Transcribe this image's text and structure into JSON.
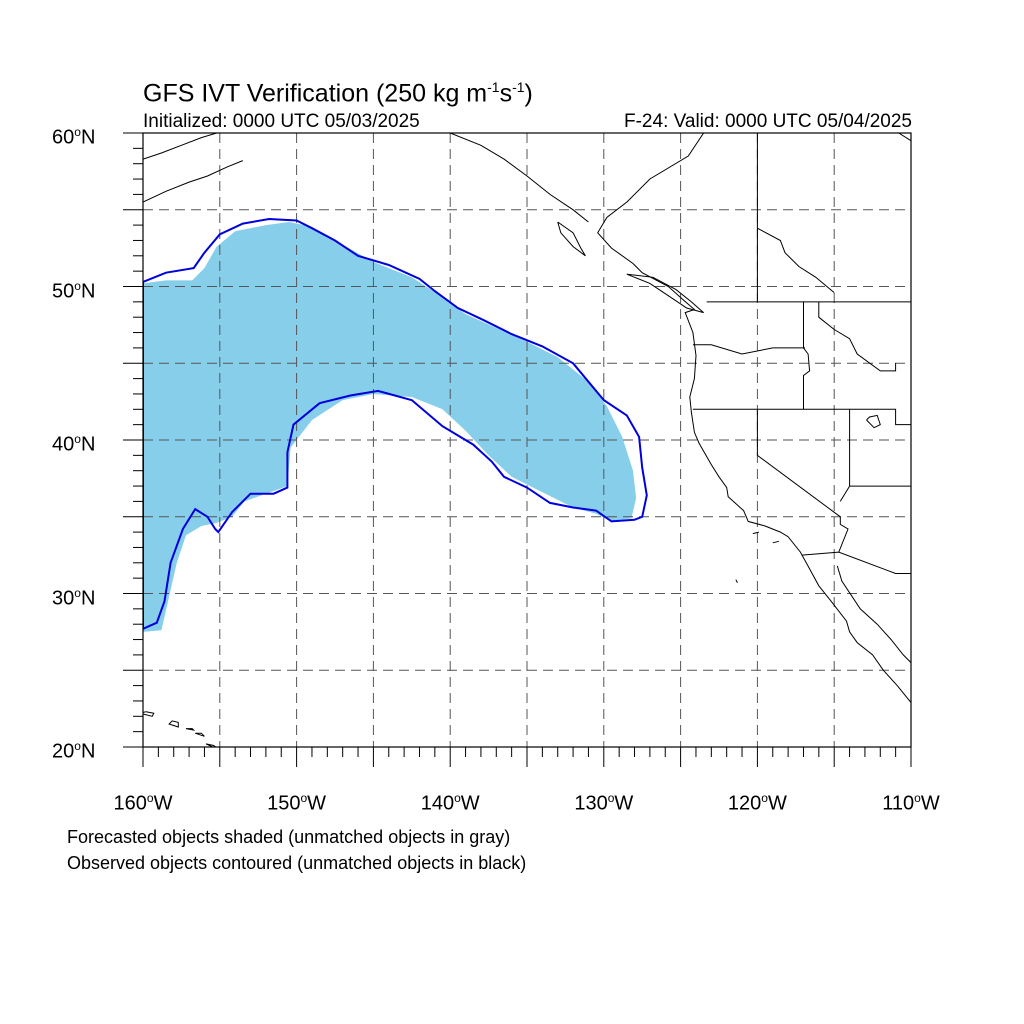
{
  "title": {
    "text": "GFS IVT Verification (250 kg m",
    "sup1": "-1",
    "mid": "s",
    "sup2": "-1",
    "close": ")"
  },
  "subtitle": {
    "initialized": "Initialized: 0000 UTC 05/03/2025",
    "valid": "F-24: Valid: 0000 UTC 05/04/2025"
  },
  "axes": {
    "lat_labels": [
      {
        "deg": "60",
        "hem": "N"
      },
      {
        "deg": "50",
        "hem": "N"
      },
      {
        "deg": "40",
        "hem": "N"
      },
      {
        "deg": "30",
        "hem": "N"
      },
      {
        "deg": "20",
        "hem": "N"
      }
    ],
    "lon_labels": [
      {
        "deg": "160",
        "hem": "W"
      },
      {
        "deg": "150",
        "hem": "W"
      },
      {
        "deg": "140",
        "hem": "W"
      },
      {
        "deg": "130",
        "hem": "W"
      },
      {
        "deg": "120",
        "hem": "W"
      },
      {
        "deg": "110",
        "hem": "W"
      }
    ],
    "degree_symbol": "o",
    "lat_range": [
      20,
      60
    ],
    "lon_range": [
      -160,
      -110
    ],
    "grid": "dashed, every 5 degrees"
  },
  "notes": {
    "forecast": "Forecasted objects shaded (unmatched objects in gray)",
    "observed": "Observed objects contoured (unmatched objects in black)"
  },
  "colors": {
    "forecast_fill": "#87ceeb",
    "observed_contour": "#0000dd",
    "coastline": "#000000",
    "grid": "#555555"
  },
  "forecast_object": [
    [
      -160,
      50.2
    ],
    [
      -158.5,
      50.4
    ],
    [
      -156.8,
      50.4
    ],
    [
      -156,
      51.2
    ],
    [
      -155.2,
      52.6
    ],
    [
      -154,
      53.6
    ],
    [
      -152,
      54.0
    ],
    [
      -150.5,
      54.2
    ],
    [
      -149.5,
      54.0
    ],
    [
      -147.5,
      53.0
    ],
    [
      -145,
      51.6
    ],
    [
      -142.5,
      50.6
    ],
    [
      -140.5,
      49.3
    ],
    [
      -139,
      48.2
    ],
    [
      -137,
      47.3
    ],
    [
      -135,
      46.4
    ],
    [
      -133,
      45.4
    ],
    [
      -131,
      43.8
    ],
    [
      -129.8,
      42.2
    ],
    [
      -128.8,
      40.2
    ],
    [
      -128.1,
      38.0
    ],
    [
      -127.9,
      36.2
    ],
    [
      -128.2,
      34.9
    ],
    [
      -129.5,
      34.7
    ],
    [
      -130.5,
      35.2
    ],
    [
      -132,
      35.6
    ],
    [
      -134,
      36.6
    ],
    [
      -136,
      37.6
    ],
    [
      -137.5,
      39.0
    ],
    [
      -139,
      40.6
    ],
    [
      -140.5,
      42.0
    ],
    [
      -142.5,
      42.8
    ],
    [
      -145,
      43.0
    ],
    [
      -147,
      42.6
    ],
    [
      -149,
      41.3
    ],
    [
      -150.4,
      39.5
    ],
    [
      -150.6,
      37.0
    ],
    [
      -152,
      36.5
    ],
    [
      -153.4,
      36.0
    ],
    [
      -154.2,
      35.0
    ],
    [
      -155.2,
      34.6
    ],
    [
      -156.2,
      34.4
    ],
    [
      -157.2,
      33.8
    ],
    [
      -157.8,
      32.0
    ],
    [
      -158.3,
      29.8
    ],
    [
      -158.8,
      27.6
    ],
    [
      -160,
      27.5
    ]
  ],
  "observed_object": [
    [
      -160,
      50.3
    ],
    [
      -158.5,
      50.9
    ],
    [
      -156.7,
      51.2
    ],
    [
      -156,
      52.2
    ],
    [
      -155,
      53.4
    ],
    [
      -153.5,
      54.1
    ],
    [
      -151.8,
      54.4
    ],
    [
      -150,
      54.3
    ],
    [
      -149,
      53.8
    ],
    [
      -147.5,
      53.0
    ],
    [
      -146,
      52.0
    ],
    [
      -144,
      51.4
    ],
    [
      -142,
      50.5
    ],
    [
      -141,
      49.7
    ],
    [
      -139.5,
      48.6
    ],
    [
      -137.8,
      47.8
    ],
    [
      -136,
      46.9
    ],
    [
      -134,
      46.1
    ],
    [
      -132,
      45.0
    ],
    [
      -131,
      43.8
    ],
    [
      -130,
      42.6
    ],
    [
      -128.5,
      41.6
    ],
    [
      -127.7,
      40.2
    ],
    [
      -127.5,
      38.2
    ],
    [
      -127.2,
      36.4
    ],
    [
      -127.5,
      35.0
    ],
    [
      -128.0,
      34.8
    ],
    [
      -129.5,
      34.7
    ],
    [
      -130.5,
      35.4
    ],
    [
      -132,
      35.6
    ],
    [
      -133.5,
      35.9
    ],
    [
      -135,
      36.9
    ],
    [
      -136.5,
      37.6
    ],
    [
      -137.3,
      38.6
    ],
    [
      -138.5,
      39.7
    ],
    [
      -140.5,
      40.9
    ],
    [
      -142.5,
      42.6
    ],
    [
      -144.7,
      43.2
    ],
    [
      -146.5,
      42.9
    ],
    [
      -148.5,
      42.4
    ],
    [
      -150.2,
      41.0
    ],
    [
      -150.6,
      39.2
    ],
    [
      -150.6,
      36.9
    ],
    [
      -151.5,
      36.5
    ],
    [
      -153.0,
      36.5
    ],
    [
      -154.2,
      35.3
    ],
    [
      -155.1,
      34.0
    ],
    [
      -155.3,
      34.2
    ],
    [
      -155.8,
      35.0
    ],
    [
      -156.6,
      35.5
    ],
    [
      -157.4,
      34.2
    ],
    [
      -158.2,
      32.0
    ],
    [
      -158.6,
      29.5
    ],
    [
      -159.1,
      28.1
    ],
    [
      -160,
      27.7
    ]
  ],
  "coastline": [
    [
      -123.5,
      60
    ],
    [
      -124.5,
      58.5
    ],
    [
      -127.0,
      57.0
    ],
    [
      -128.5,
      55.5
    ],
    [
      -129.8,
      54.5
    ],
    [
      -130.4,
      53.5
    ],
    [
      -129.5,
      52.5
    ],
    [
      -128.1,
      51.5
    ],
    [
      -127.5,
      50.9
    ],
    [
      -125.8,
      50.0
    ],
    [
      -124.8,
      49.1
    ],
    [
      -124.1,
      48.5
    ],
    [
      -124.7,
      48.3
    ],
    [
      -124.2,
      47.0
    ],
    [
      -124.0,
      45.5
    ],
    [
      -124.1,
      44.0
    ],
    [
      -124.4,
      42.8
    ],
    [
      -124.3,
      41.8
    ],
    [
      -124.1,
      40.5
    ],
    [
      -123.8,
      39.8
    ],
    [
      -123.0,
      38.4
    ],
    [
      -122.5,
      37.6
    ],
    [
      -122.0,
      36.9
    ],
    [
      -121.9,
      36.3
    ],
    [
      -120.9,
      35.4
    ],
    [
      -120.6,
      34.7
    ],
    [
      -119.5,
      34.4
    ],
    [
      -118.5,
      34.0
    ],
    [
      -118.0,
      33.7
    ],
    [
      -117.2,
      32.7
    ],
    [
      -116.6,
      31.6
    ],
    [
      -116.0,
      30.5
    ],
    [
      -115.2,
      29.5
    ],
    [
      -114.2,
      28.2
    ],
    [
      -114.0,
      27.5
    ],
    [
      -113.5,
      26.8
    ],
    [
      -112.5,
      26.0
    ],
    [
      -111.8,
      25.0
    ],
    [
      -110.9,
      24.0
    ],
    [
      -110.0,
      22.9
    ]
  ],
  "gulf_coast": [
    [
      -114.8,
      31.8
    ],
    [
      -114.5,
      30.8
    ],
    [
      -113.3,
      29.0
    ],
    [
      -112.2,
      28.0
    ],
    [
      -111.3,
      27.0
    ],
    [
      -110.5,
      26.0
    ],
    [
      -110.0,
      25.5
    ]
  ],
  "alaska_coast": [
    [
      -160,
      58.3
    ],
    [
      -158.8,
      58.7
    ],
    [
      -157.5,
      59.2
    ],
    [
      -156.2,
      59.7
    ],
    [
      -155.2,
      60.0
    ]
  ],
  "alaska_coast2": [
    [
      -160,
      55.5
    ],
    [
      -158.5,
      56.2
    ],
    [
      -157.0,
      56.8
    ],
    [
      -155.8,
      57.2
    ],
    [
      -154.5,
      57.8
    ],
    [
      -153.5,
      58.2
    ]
  ],
  "alaska_coast3": [
    [
      -140,
      60
    ],
    [
      -138.0,
      59.2
    ],
    [
      -136.5,
      58.3
    ],
    [
      -135.0,
      57.2
    ],
    [
      -133.5,
      56.0
    ],
    [
      -132.0,
      55.0
    ],
    [
      -131.0,
      54.2
    ]
  ],
  "canada_islands": [
    [
      [
        -133.0,
        54.2
      ],
      [
        -132.0,
        53.5
      ],
      [
        -131.5,
        52.5
      ],
      [
        -131.2,
        52.0
      ],
      [
        -132.0,
        52.6
      ],
      [
        -132.8,
        53.5
      ],
      [
        -133.0,
        54.2
      ]
    ],
    [
      [
        -128.5,
        50.8
      ],
      [
        -127.0,
        50.2
      ],
      [
        -125.8,
        49.4
      ],
      [
        -124.6,
        48.6
      ],
      [
        -123.5,
        48.3
      ],
      [
        -124.3,
        49.0
      ],
      [
        -125.3,
        49.8
      ],
      [
        -126.8,
        50.6
      ],
      [
        -128.5,
        50.8
      ]
    ]
  ],
  "hawaii": [
    [
      [
        -160.2,
        22.2
      ],
      [
        -159.4,
        22.0
      ],
      [
        -159.3,
        22.2
      ],
      [
        -159.8,
        22.3
      ]
    ],
    [
      [
        -158.3,
        21.5
      ],
      [
        -157.7,
        21.3
      ],
      [
        -157.7,
        21.6
      ],
      [
        -158.1,
        21.7
      ]
    ],
    [
      [
        -157.2,
        21.2
      ],
      [
        -156.7,
        21.1
      ],
      [
        -156.8,
        21.2
      ]
    ],
    [
      [
        -156.6,
        20.9
      ],
      [
        -156.0,
        20.7
      ],
      [
        -156.2,
        20.9
      ]
    ],
    [
      [
        -155.9,
        20.2
      ],
      [
        -155.0,
        19.8
      ],
      [
        -155.4,
        20.1
      ]
    ]
  ],
  "borders": [
    [
      [
        -123.3,
        49
      ],
      [
        -110,
        49
      ]
    ],
    [
      [
        -124.2,
        46.2
      ],
      [
        -123.0,
        46.2
      ],
      [
        -121.0,
        45.6
      ],
      [
        -119.0,
        46.0
      ],
      [
        -116.9,
        46.0
      ]
    ],
    [
      [
        -124.2,
        42
      ],
      [
        -111,
        42
      ],
      [
        -111,
        41
      ],
      [
        -110,
        41
      ]
    ],
    [
      [
        -117.0,
        49
      ],
      [
        -117.0,
        46.0
      ],
      [
        -116.7,
        45.6
      ],
      [
        -116.6,
        44.5
      ],
      [
        -117.0,
        44.2
      ],
      [
        -117.0,
        42
      ]
    ],
    [
      [
        -116.0,
        49
      ],
      [
        -116.0,
        48.0
      ],
      [
        -115.0,
        47.2
      ],
      [
        -114.0,
        46.6
      ],
      [
        -113.5,
        45.6
      ],
      [
        -112.0,
        44.5
      ],
      [
        -111,
        44.5
      ],
      [
        -111,
        45
      ]
    ],
    [
      [
        -120.0,
        42
      ],
      [
        -120.0,
        39.0
      ],
      [
        -114.6,
        35.0
      ],
      [
        -114.6,
        34.5
      ],
      [
        -114.1,
        34.2
      ],
      [
        -114.7,
        32.7
      ]
    ],
    [
      [
        -114.0,
        42
      ],
      [
        -114.0,
        37.0
      ],
      [
        -114.6,
        36.0
      ]
    ],
    [
      [
        -114,
        37
      ],
      [
        -110,
        37
      ]
    ],
    [
      [
        -117.1,
        32.5
      ],
      [
        -114.7,
        32.7
      ],
      [
        -111.0,
        31.3
      ],
      [
        -110,
        31.3
      ]
    ],
    [
      [
        -120.0,
        60
      ],
      [
        -120.0,
        49
      ]
    ]
  ],
  "canada_inland": [
    [
      [
        -120,
        53.8
      ],
      [
        -118.5,
        53.0
      ],
      [
        -118.2,
        52.2
      ],
      [
        -117.3,
        51.3
      ],
      [
        -116.2,
        50.6
      ],
      [
        -115.0,
        49.6
      ]
    ],
    [
      [
        -110.8,
        60
      ],
      [
        -110,
        59.5
      ]
    ]
  ],
  "lakes": [
    [
      [
        -112.9,
        41.3
      ],
      [
        -112.4,
        40.8
      ],
      [
        -112.0,
        41.0
      ],
      [
        -112.2,
        41.6
      ],
      [
        -112.7,
        41.5
      ],
      [
        -112.9,
        41.3
      ]
    ],
    [
      [
        -121.4,
        30.9
      ],
      [
        -121.3,
        30.7
      ]
    ],
    [
      [
        -120.3,
        33.9
      ],
      [
        -119.9,
        34.0
      ]
    ],
    [
      [
        -119.0,
        33.3
      ],
      [
        -118.6,
        33.4
      ]
    ]
  ]
}
